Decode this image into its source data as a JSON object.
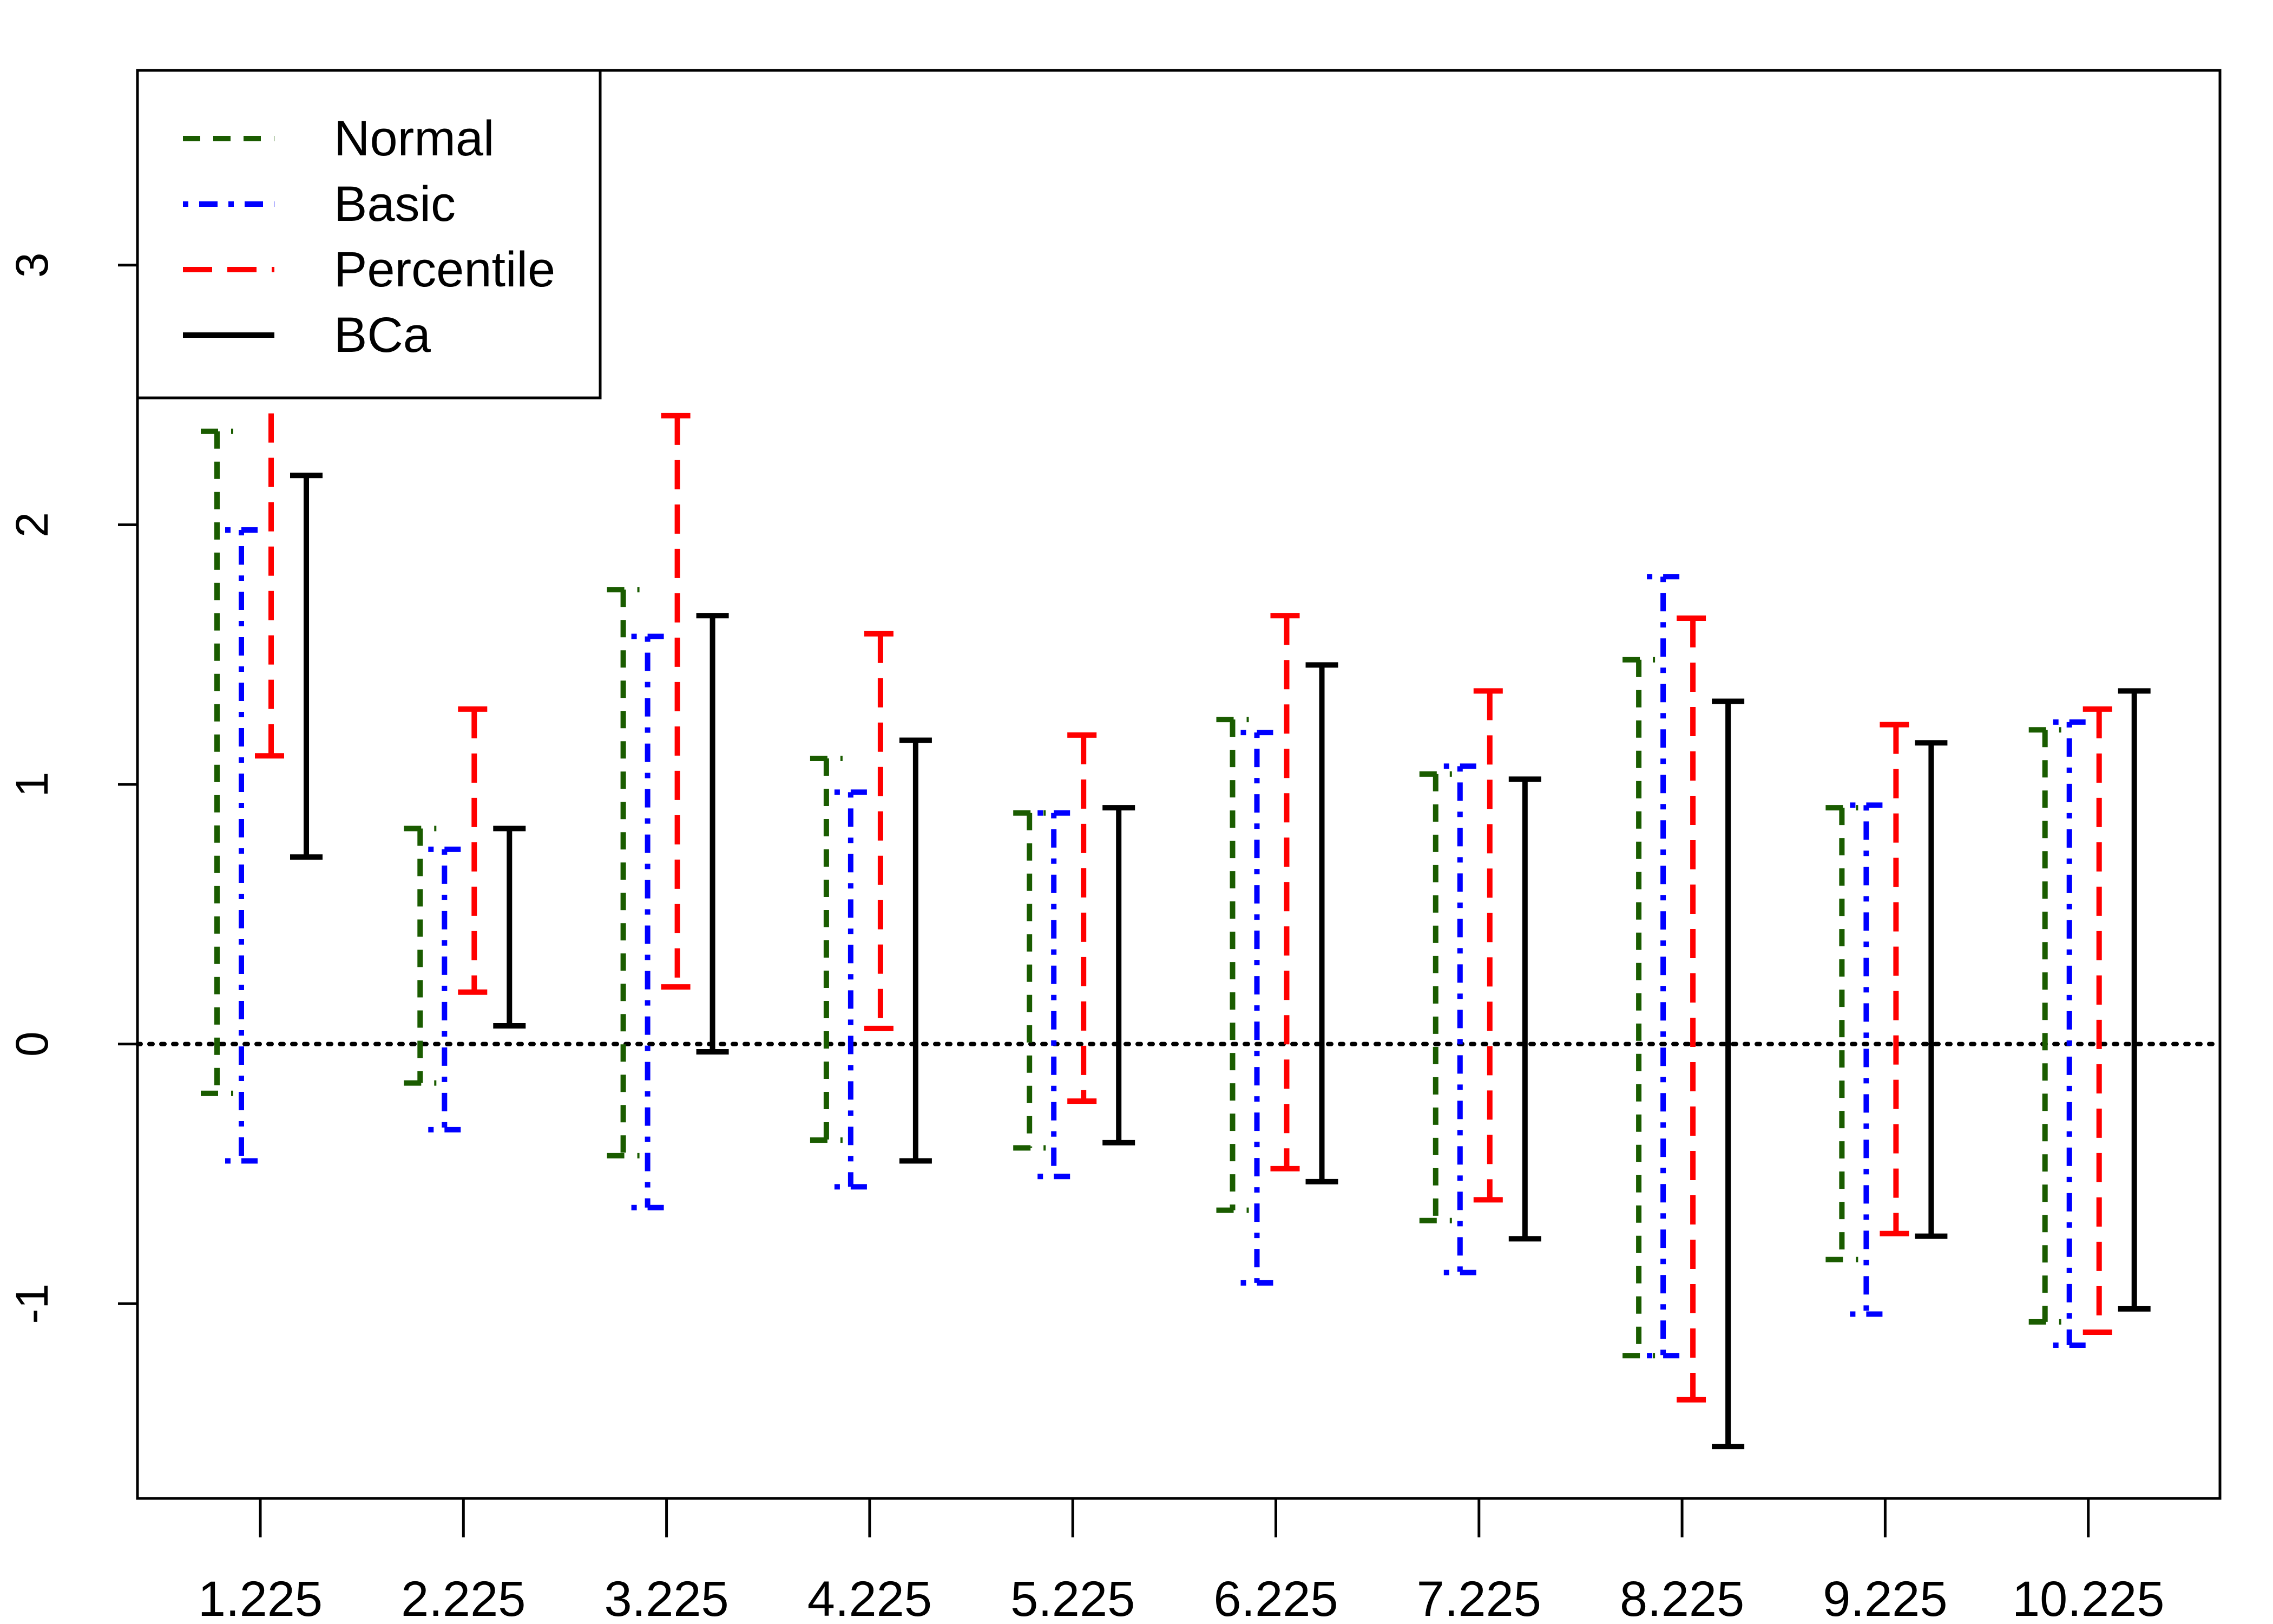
{
  "chart_data": {
    "type": "errorbar",
    "title": "",
    "xlabel": "",
    "ylabel": "",
    "categories": [
      "1.225",
      "2.225",
      "3.225",
      "4.225",
      "5.225",
      "6.225",
      "7.225",
      "8.225",
      "9.225",
      "10.225"
    ],
    "ylim": [
      -1.75,
      3.75
    ],
    "yticks": [
      -1,
      0,
      1,
      2,
      3
    ],
    "reference_line": {
      "y": 0,
      "style": "dotted",
      "color": "#000000"
    },
    "legend": {
      "position": "top-left"
    },
    "series": [
      {
        "name": "Normal",
        "color": "#1a5c00",
        "dash": "dashed",
        "lower": [
          -0.19,
          -0.15,
          -0.43,
          -0.37,
          -0.4,
          -0.64,
          -0.68,
          -1.2,
          -0.83,
          -1.07
        ],
        "upper": [
          2.36,
          0.83,
          1.75,
          1.1,
          0.89,
          1.25,
          1.04,
          1.48,
          0.91,
          1.21
        ]
      },
      {
        "name": "Basic",
        "color": "#0000ff",
        "dash": "dotdash",
        "lower": [
          -0.45,
          -0.33,
          -0.63,
          -0.55,
          -0.51,
          -0.92,
          -0.88,
          -1.2,
          -1.04,
          -1.16
        ],
        "upper": [
          1.98,
          0.75,
          1.57,
          0.97,
          0.89,
          1.2,
          1.07,
          1.8,
          0.92,
          1.24
        ]
      },
      {
        "name": "Percentile",
        "color": "#ff0000",
        "dash": "longdash",
        "lower": [
          1.11,
          0.2,
          0.22,
          0.06,
          -0.22,
          -0.48,
          -0.6,
          -1.37,
          -0.73,
          -1.11
        ],
        "upper": [
          2.6,
          1.29,
          2.42,
          1.58,
          1.19,
          1.65,
          1.36,
          1.64,
          1.23,
          1.29
        ]
      },
      {
        "name": "BCa",
        "color": "#000000",
        "dash": "solid",
        "lower": [
          0.72,
          0.07,
          -0.03,
          -0.45,
          -0.38,
          -0.53,
          -0.75,
          -1.55,
          -0.74,
          -1.02
        ],
        "upper": [
          2.19,
          0.83,
          1.65,
          1.17,
          0.91,
          1.46,
          1.02,
          1.32,
          1.16,
          1.36
        ]
      }
    ]
  }
}
